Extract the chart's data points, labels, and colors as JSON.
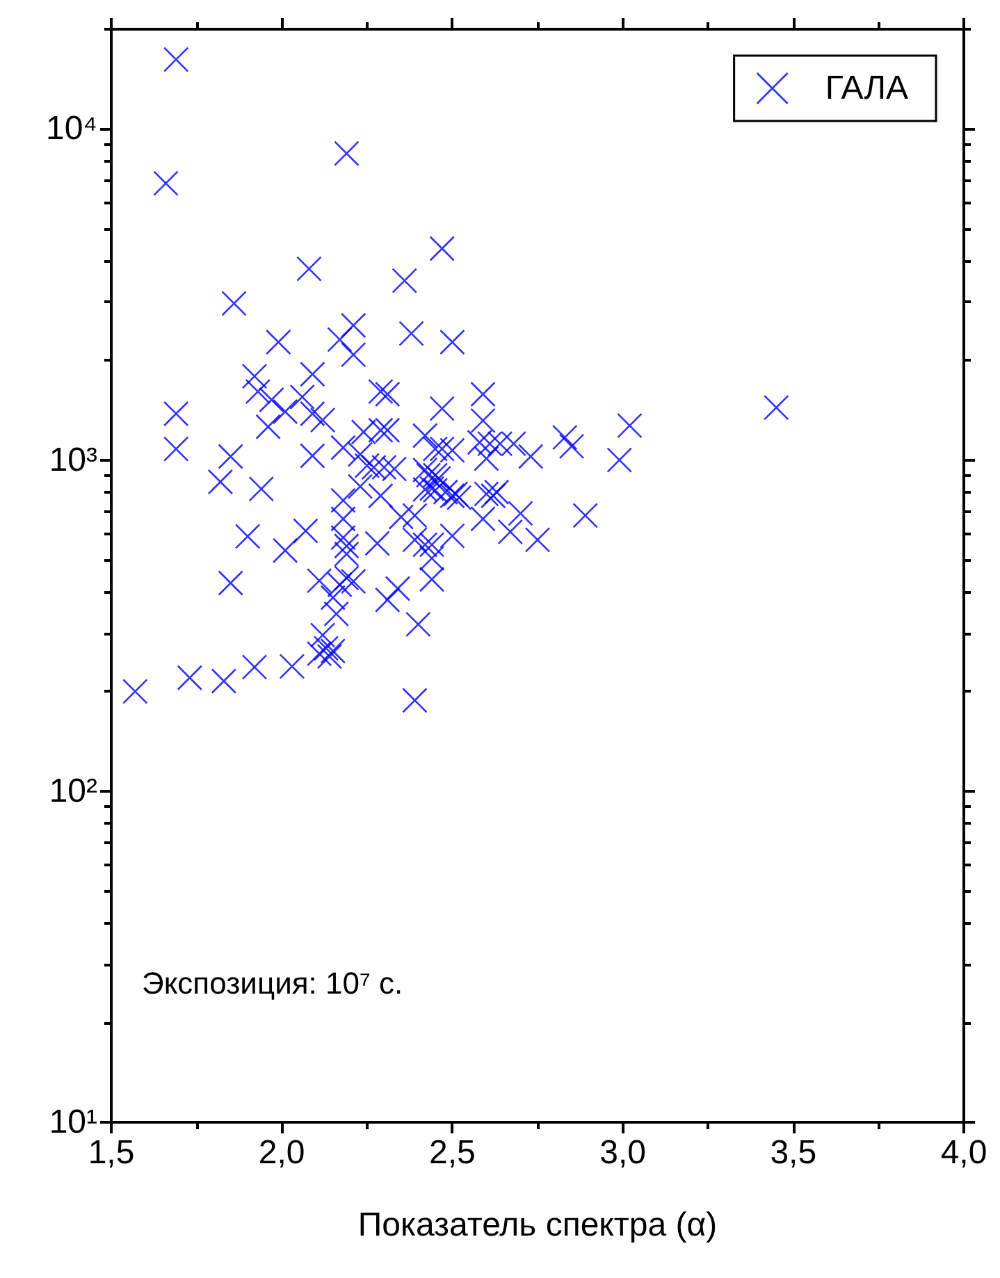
{
  "chart_data": {
    "type": "scatter",
    "xlabel": "Показатель спектра (α)",
    "marker": "cross",
    "legend": "top right",
    "grid": false,
    "annotations": [
      "Экспозиция: 10⁷ с."
    ],
    "xlim": [
      1.5,
      4.0
    ],
    "xticks": [
      {
        "value": 1.5,
        "label": "1,5"
      },
      {
        "value": 1.75,
        "label": null
      },
      {
        "value": 2.0,
        "label": "2,0"
      },
      {
        "value": 2.25,
        "label": null
      },
      {
        "value": 2.5,
        "label": "2,5"
      },
      {
        "value": 2.75,
        "label": null
      },
      {
        "value": 3.0,
        "label": "3,0"
      },
      {
        "value": 3.25,
        "label": null
      },
      {
        "value": 3.5,
        "label": "3,5"
      },
      {
        "value": 3.75,
        "label": null
      },
      {
        "value": 4.0,
        "label": "4,0"
      }
    ],
    "log": "y",
    "ylim": [
      10,
      20000
    ],
    "yticks": [
      {
        "value": 10,
        "label": "10¹"
      },
      {
        "value": 20,
        "label": null
      },
      {
        "value": 30,
        "label": null
      },
      {
        "value": 40,
        "label": null
      },
      {
        "value": 50,
        "label": null
      },
      {
        "value": 60,
        "label": null
      },
      {
        "value": 70,
        "label": null
      },
      {
        "value": 80,
        "label": null
      },
      {
        "value": 90,
        "label": null
      },
      {
        "value": 100,
        "label": "10²"
      },
      {
        "value": 200,
        "label": null
      },
      {
        "value": 300,
        "label": null
      },
      {
        "value": 400,
        "label": null
      },
      {
        "value": 500,
        "label": null
      },
      {
        "value": 600,
        "label": null
      },
      {
        "value": 700,
        "label": null
      },
      {
        "value": 800,
        "label": null
      },
      {
        "value": 900,
        "label": null
      },
      {
        "value": 1000,
        "label": "10³"
      },
      {
        "value": 2000,
        "label": null
      },
      {
        "value": 3000,
        "label": null
      },
      {
        "value": 4000,
        "label": null
      },
      {
        "value": 5000,
        "label": null
      },
      {
        "value": 6000,
        "label": null
      },
      {
        "value": 7000,
        "label": null
      },
      {
        "value": 8000,
        "label": null
      },
      {
        "value": 9000,
        "label": null
      },
      {
        "value": 10000,
        "label": "10⁴"
      },
      {
        "value": 20000,
        "label": null
      }
    ],
    "series": [
      {
        "name": "ГАЛА",
        "color": "#0000ff",
        "x": [
          1.69,
          1.66,
          2.19,
          2.47,
          2.08,
          2.36,
          1.86,
          1.99,
          2.21,
          2.17,
          2.21,
          2.38,
          2.5,
          1.92,
          2.09,
          1.93,
          1.97,
          2.01,
          2.06,
          2.09,
          2.12,
          1.96,
          1.69,
          1.69,
          1.85,
          1.82,
          1.94,
          2.09,
          2.29,
          2.31,
          2.47,
          2.59,
          2.59,
          2.24,
          2.29,
          2.31,
          2.42,
          2.58,
          2.61,
          2.64,
          2.68,
          2.6,
          2.73,
          2.18,
          2.23,
          2.25,
          2.27,
          2.3,
          2.33,
          2.45,
          2.47,
          2.5,
          2.42,
          2.43,
          2.45,
          2.46,
          2.23,
          2.29,
          2.18,
          2.18,
          2.18,
          2.19,
          2.19,
          2.35,
          2.39,
          2.42,
          2.44,
          2.45,
          2.48,
          2.5,
          2.51,
          2.52,
          2.6,
          2.62,
          2.63,
          2.59,
          2.7,
          2.67,
          2.75,
          2.5,
          2.39,
          2.42,
          2.44,
          2.44,
          2.44,
          2.28,
          2.07,
          2.01,
          1.9,
          1.85,
          2.11,
          2.17,
          2.19,
          2.21,
          2.15,
          2.16,
          2.12,
          2.11,
          2.13,
          2.15,
          2.14,
          2.31,
          2.34,
          2.4,
          2.39,
          1.57,
          1.73,
          1.83,
          1.92,
          2.03,
          3.45,
          3.02,
          2.83,
          2.85,
          2.99,
          2.89
        ],
        "values": [
          16200,
          6850,
          8430,
          4350,
          3780,
          3480,
          2970,
          2270,
          2550,
          2310,
          2080,
          2410,
          2270,
          1790,
          1815,
          1610,
          1520,
          1400,
          1550,
          1380,
          1320,
          1260,
          1380,
          1080,
          1025,
          859,
          818,
          1030,
          1610,
          1580,
          1430,
          1580,
          1315,
          1215,
          1230,
          1230,
          1185,
          1130,
          1120,
          1120,
          1120,
          1010,
          1025,
          1090,
          1040,
          962,
          950,
          950,
          940,
          1080,
          1080,
          1070,
          933,
          900,
          900,
          880,
          832,
          780,
          755,
          664,
          583,
          550,
          520,
          673,
          680,
          815,
          820,
          810,
          800,
          780,
          790,
          770,
          790,
          780,
          800,
          664,
          690,
          607,
          574,
          590,
          574,
          555,
          555,
          505,
          436,
          560,
          611,
          533,
          588,
          425,
          432,
          420,
          440,
          430,
          384,
          343,
          296,
          260,
          270,
          265,
          255,
          378,
          409,
          319,
          188,
          200,
          220,
          215,
          237,
          238,
          1440,
          1270,
          1170,
          1100,
          1000,
          680
        ]
      }
    ]
  }
}
